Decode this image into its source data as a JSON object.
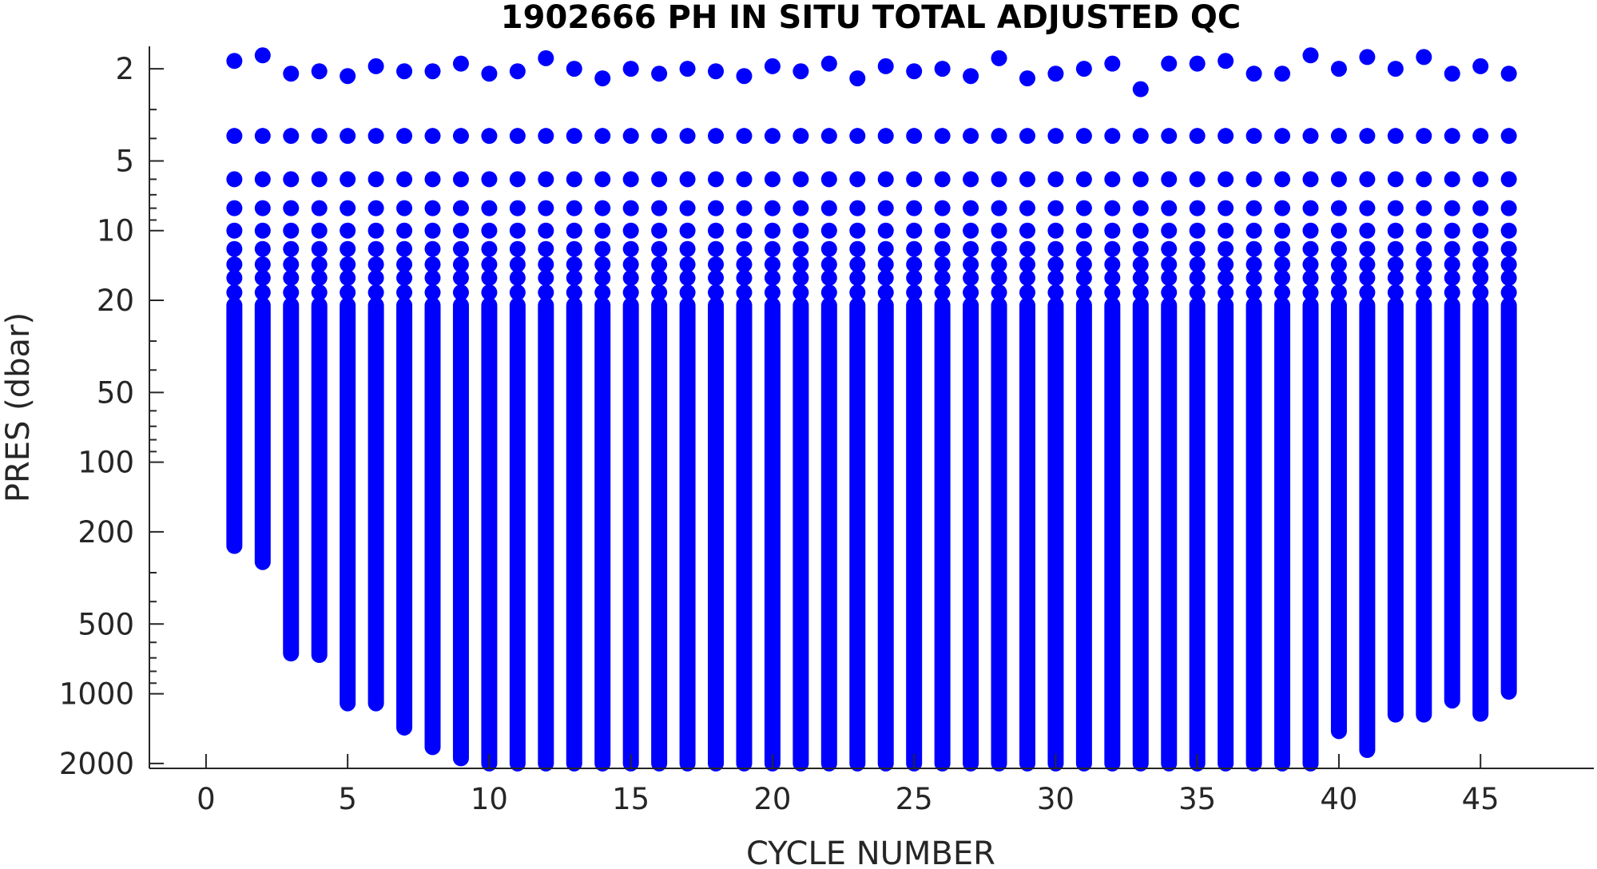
{
  "chart_data": {
    "type": "scatter",
    "title": "1902666  PH IN SITU TOTAL ADJUSTED QC",
    "xlabel": "CYCLE NUMBER",
    "ylabel": "PRES (dbar)",
    "xlim": [
      -2,
      49
    ],
    "ylim": [
      1.6,
      2100
    ],
    "y_scale": "log",
    "y_reversed": true,
    "xticks": [
      0,
      5,
      10,
      15,
      20,
      25,
      30,
      35,
      40,
      45
    ],
    "yticks": [
      2,
      5,
      10,
      20,
      50,
      100,
      200,
      500,
      1000,
      2000
    ],
    "grid": false,
    "legend": "none",
    "marker_color": "#0000ff",
    "series": [
      {
        "cycles": [
          1,
          2,
          3,
          4,
          5,
          6,
          7,
          8,
          9,
          10,
          11,
          12,
          13,
          14,
          15,
          16,
          17,
          18,
          19,
          20,
          21,
          22,
          23,
          24,
          25,
          26,
          27,
          28,
          29,
          30,
          31,
          32,
          33,
          34,
          35,
          36,
          37,
          38,
          39,
          40,
          41,
          42,
          43,
          44,
          45,
          46
        ],
        "max_pressure": [
          230,
          270,
          670,
          680,
          1100,
          1100,
          1400,
          1700,
          1900,
          2000,
          2000,
          2000,
          2000,
          2000,
          2000,
          2000,
          2000,
          2000,
          2000,
          2000,
          2000,
          2000,
          2000,
          2000,
          2000,
          2000,
          2000,
          2000,
          2000,
          2000,
          2000,
          2000,
          2000,
          2000,
          2000,
          2000,
          2000,
          2000,
          2000,
          1450,
          1750,
          1230,
          1230,
          1070,
          1220,
          980
        ],
        "surface_pressure": [
          1.85,
          1.75,
          2.1,
          2.05,
          2.15,
          1.95,
          2.05,
          2.05,
          1.9,
          2.1,
          2.05,
          1.8,
          2.0,
          2.2,
          2.0,
          2.1,
          2.0,
          2.05,
          2.15,
          1.95,
          2.05,
          1.9,
          2.2,
          1.95,
          2.05,
          2.0,
          2.15,
          1.8,
          2.2,
          2.1,
          2.0,
          1.9,
          2.45,
          1.9,
          1.9,
          1.85,
          2.1,
          2.1,
          1.75,
          2.0,
          1.78,
          2.0,
          1.78,
          2.1,
          1.95,
          2.1
        ],
        "upper_levels": [
          3.9,
          6.0,
          8.0,
          10.0,
          12.0,
          14.0,
          16.0,
          18.5
        ]
      }
    ]
  }
}
